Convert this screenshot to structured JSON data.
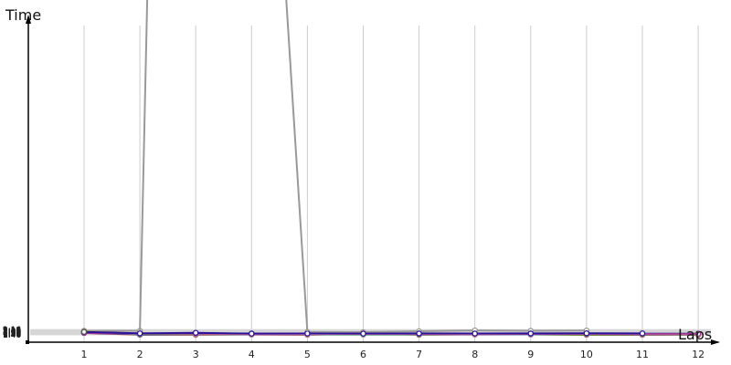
{
  "chart_data": {
    "type": "line",
    "title": "",
    "xlabel": "Laps",
    "ylabel": "Time",
    "x": [
      1,
      2,
      3,
      4,
      5,
      6,
      7,
      8,
      9,
      10,
      11,
      12
    ],
    "y_tick_labels": [
      "1:46",
      "1:47",
      "1:48",
      "1:49",
      "1:50",
      "1:51",
      "1:52",
      "1:53",
      "1:54",
      "1:55",
      "1:56",
      "1:57",
      "1:58",
      "1:59",
      "2:00",
      "2:01",
      "2:02",
      "2:03",
      "2:04",
      "2:05",
      "2:06",
      "2:07",
      "2:08",
      "2:09",
      "2:10",
      "2:11",
      "2:12",
      "2:13",
      "2:14",
      "2:15",
      "2:16"
    ],
    "ylim": [
      "1:45",
      "2:18"
    ],
    "grid": true,
    "series": [
      {
        "color": "#999999",
        "values": [
          "2:09.3",
          "2:08.8",
          null,
          null,
          "2:02",
          "2:01",
          "2:06.6",
          "2:11.3",
          "2:08.8",
          "2:10.6",
          null,
          null
        ]
      },
      {
        "color": "#ee1111",
        "values": [
          "1:56.2",
          "1:46.4",
          "1:46",
          "1:47.2",
          "1:46",
          "1:51.8",
          "1:46.2",
          "1:47",
          "1:47.5",
          "1:45.8",
          "1:45.7",
          "1:46.2"
        ]
      },
      {
        "color": "#22bb22",
        "values": [
          "1:58.5",
          "1:47.2",
          "1:46.9",
          "1:47.5",
          "1:47.3",
          "1:46.9",
          "1:46.9",
          "1:47.6",
          "1:47.8",
          "1:47",
          "1:47",
          "1:47.2"
        ]
      },
      {
        "color": "#2222dd",
        "values": [
          "1:57.2",
          "1:48.6",
          "1:49.7",
          "1:49.3",
          "1:49.2",
          "1:49.4",
          "1:48.7",
          "1:49.2",
          "1:49.5",
          "1:50.1",
          "1:48.8",
          "1:48.9"
        ]
      },
      {
        "color": "#1a99ee",
        "values": [
          "1:58.2",
          "1:51.3",
          "1:50.9",
          "1:54",
          "1:50",
          "1:50",
          "1:50",
          "1:49.7",
          "1:50",
          "1:50.3",
          "1:52.9",
          "1:53.1"
        ]
      },
      {
        "color": "#ee77ee",
        "values": [
          "1:58",
          "1:50.2",
          "1:49.3",
          "1:49",
          "1:49.1",
          "1:49.6",
          "1:49.1",
          "1:49.2",
          "1:49.5",
          "1:50.1",
          "1:49.6",
          "1:49.6"
        ]
      },
      {
        "color": "#228833",
        "values": [
          "1:59",
          "1:50.8",
          "1:51",
          "1:50.8",
          "1:50.9",
          "1:49.7",
          "1:49.1",
          "1:50.2",
          "1:50.9",
          "1:51.2",
          "1:50.7",
          "1:50.1"
        ]
      },
      {
        "color": "#dddd22",
        "values": [
          "2:03.8",
          "1:53.4",
          "1:52.2",
          "1:51",
          "1:50.2",
          "1:51.2",
          "1:53",
          "1:51.5",
          "1:51",
          "1:50.7",
          "1:50.2",
          "1:51.2"
        ]
      },
      {
        "color": "#ff9999",
        "values": [
          "1:59.8",
          "1:53.5",
          "1:51.5",
          "1:50.2",
          "1:50.1",
          "1:50.1",
          "1:50.2",
          "1:50.1",
          "1:50.7",
          "1:51.1",
          "1:50.5",
          "1:49.8"
        ]
      },
      {
        "color": "#993399",
        "values": [
          "1:56.8",
          "1:53.5",
          "1:52.9",
          "1:52.2",
          "1:52.7",
          "1:52.7",
          "1:51.5",
          "1:52.3",
          "1:51.2",
          "1:51.4",
          "1:51.5",
          "1:51.6"
        ]
      },
      {
        "color": "#2a1199",
        "values": [
          "2:02.5",
          "1:54.0",
          "1:57.1",
          "1:52.3",
          "1:52.9",
          "1:52.4",
          "1:53.5",
          "1:53.2",
          "1:53.6",
          "1:54.6",
          "1:53.8",
          null
        ]
      },
      {
        "color": "#555555",
        "values": [
          "2:02.8",
          null,
          null,
          null,
          null,
          null,
          null,
          null,
          null,
          null,
          null,
          null
        ]
      }
    ]
  }
}
